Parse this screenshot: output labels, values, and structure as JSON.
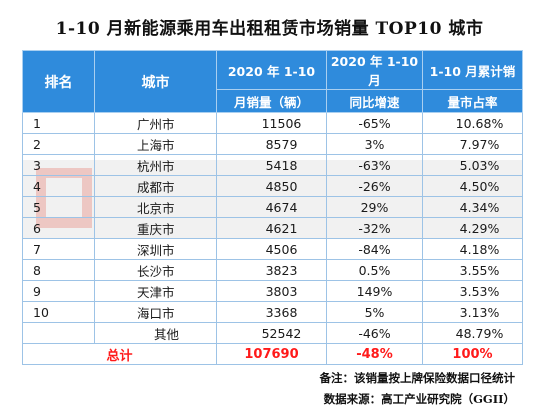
{
  "title": "1-10 月新能源乘用车出租租赁市场销量 TOP10 城市",
  "headers": {
    "rank": "排名",
    "city": "城市",
    "sales_line1": "2020 年 1-10",
    "sales_line2": "月销量（辆）",
    "yoy_line1": "2020 年 1-10 月",
    "yoy_line2": "同比增速",
    "share_line1": "1-10 月累计销",
    "share_line2": "量市占率"
  },
  "rows": [
    {
      "rank": "1",
      "city": "广州市",
      "sales": "11506",
      "yoy": "-65%",
      "share": "10.68%"
    },
    {
      "rank": "2",
      "city": "上海市",
      "sales": "8579",
      "yoy": "3%",
      "share": "7.97%"
    },
    {
      "rank": "3",
      "city": "杭州市",
      "sales": "5418",
      "yoy": "-63%",
      "share": "5.03%"
    },
    {
      "rank": "4",
      "city": "成都市",
      "sales": "4850",
      "yoy": "-26%",
      "share": "4.50%"
    },
    {
      "rank": "5",
      "city": "北京市",
      "sales": "4674",
      "yoy": "29%",
      "share": "4.34%"
    },
    {
      "rank": "6",
      "city": "重庆市",
      "sales": "4621",
      "yoy": "-32%",
      "share": "4.29%"
    },
    {
      "rank": "7",
      "city": "深圳市",
      "sales": "4506",
      "yoy": "-84%",
      "share": "4.18%"
    },
    {
      "rank": "8",
      "city": "长沙市",
      "sales": "3823",
      "yoy": "0.5%",
      "share": "3.55%"
    },
    {
      "rank": "9",
      "city": "天津市",
      "sales": "3803",
      "yoy": "149%",
      "share": "3.53%"
    },
    {
      "rank": "10",
      "city": "海口市",
      "sales": "3368",
      "yoy": "5%",
      "share": "3.13%"
    }
  ],
  "other": {
    "city": "其他",
    "sales": "52542",
    "yoy": "-46%",
    "share": "48.79%"
  },
  "total": {
    "label": "总计",
    "sales": "107690",
    "yoy": "-48%",
    "share": "100%"
  },
  "notes": {
    "remark": "备注：该销量按上牌保险数据口径统计",
    "source": "数据来源：高工产业研究院（GGII）"
  },
  "colors": {
    "header_bg": "#2f8bdc",
    "total_text": "#ff1a1a"
  }
}
